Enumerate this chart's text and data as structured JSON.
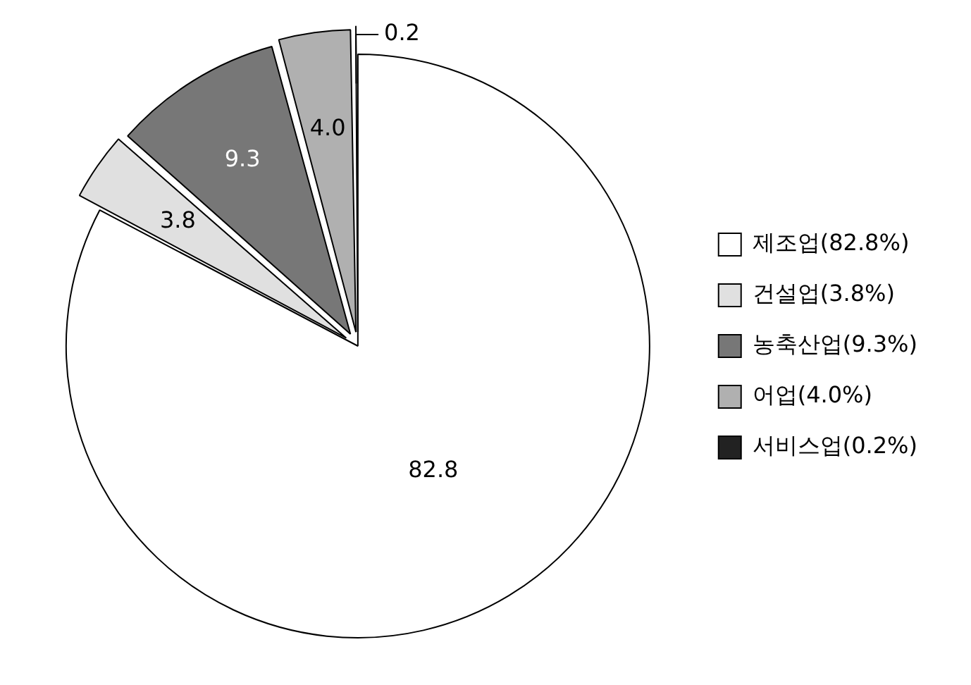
{
  "chart_data": {
    "type": "pie",
    "categories": [
      "제조업(82.8%)",
      "건설업(3.8%)",
      "농축산업(9.3%)",
      "어업(4.0%)",
      "서비스업(0.2%)"
    ],
    "values": [
      82.8,
      3.8,
      9.3,
      4.0,
      0.2
    ],
    "colors": [
      "#ffffff",
      "#e0e0e0",
      "#777777",
      "#b0b0b0",
      "#222222"
    ],
    "value_labels": [
      "82.8",
      "3.8",
      "9.3",
      "4.0",
      "0.2"
    ],
    "legend": "right"
  }
}
